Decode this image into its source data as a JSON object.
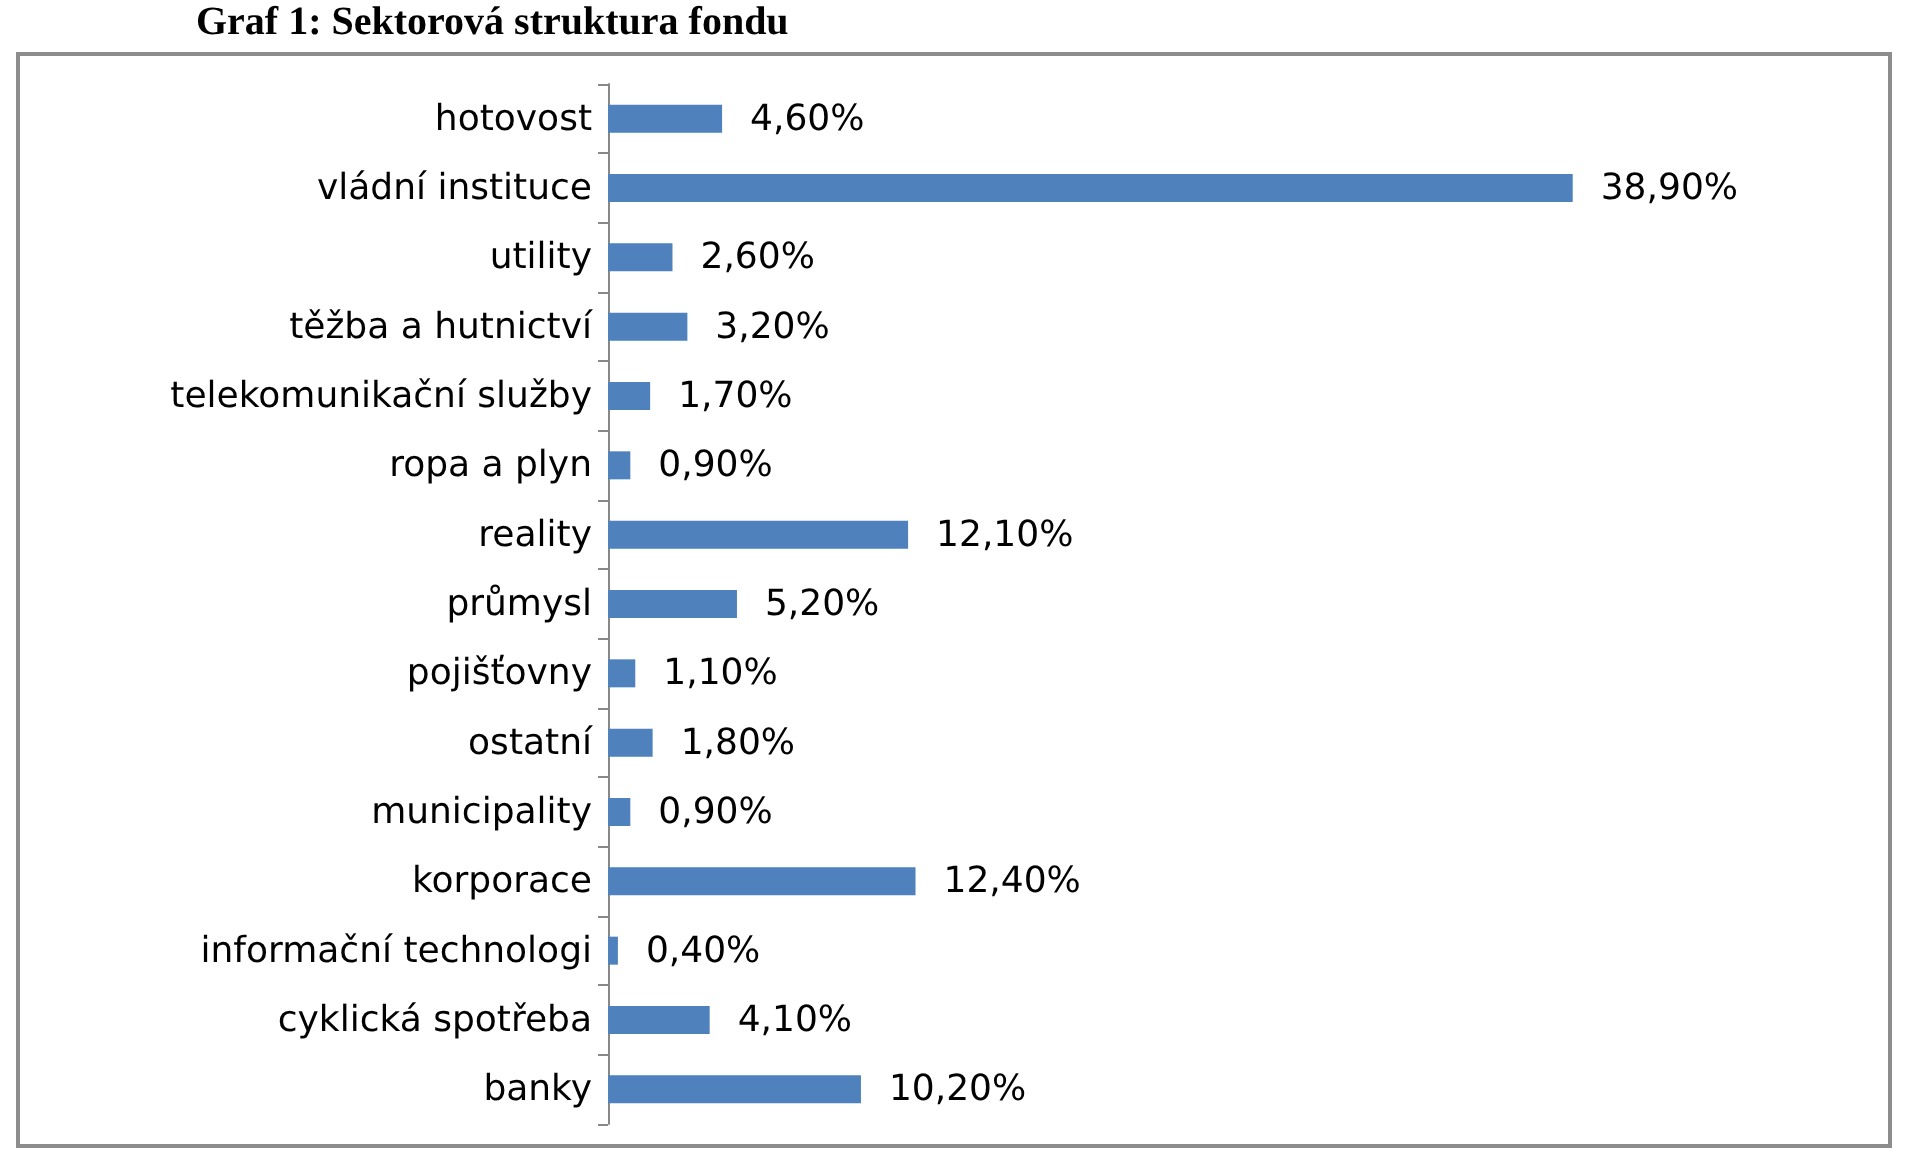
{
  "chart_data": {
    "type": "bar",
    "orientation": "horizontal",
    "title": "Graf 1: Sektorová struktura fondu",
    "categories": [
      "hotovost",
      "vládní instituce",
      "utility",
      "těžba a hutnictví",
      "telekomunikační služby",
      "ropa a plyn",
      "reality",
      "průmysl",
      "pojišťovny",
      "ostatní",
      "municipality",
      "korporace",
      "informační technologi",
      "cyklická spotřeba",
      "banky"
    ],
    "values": [
      4.6,
      38.9,
      2.6,
      3.2,
      1.7,
      0.9,
      12.1,
      5.2,
      1.1,
      1.8,
      0.9,
      12.4,
      0.4,
      4.1,
      10.2
    ],
    "value_labels": [
      "4,60%",
      "38,90%",
      "2,60%",
      "3,20%",
      "1,70%",
      "0,90%",
      "12,10%",
      "5,20%",
      "1,10%",
      "1,80%",
      "0,90%",
      "12,40%",
      "0,40%",
      "4,10%",
      "10,20%"
    ],
    "color": "#4f81bd"
  }
}
